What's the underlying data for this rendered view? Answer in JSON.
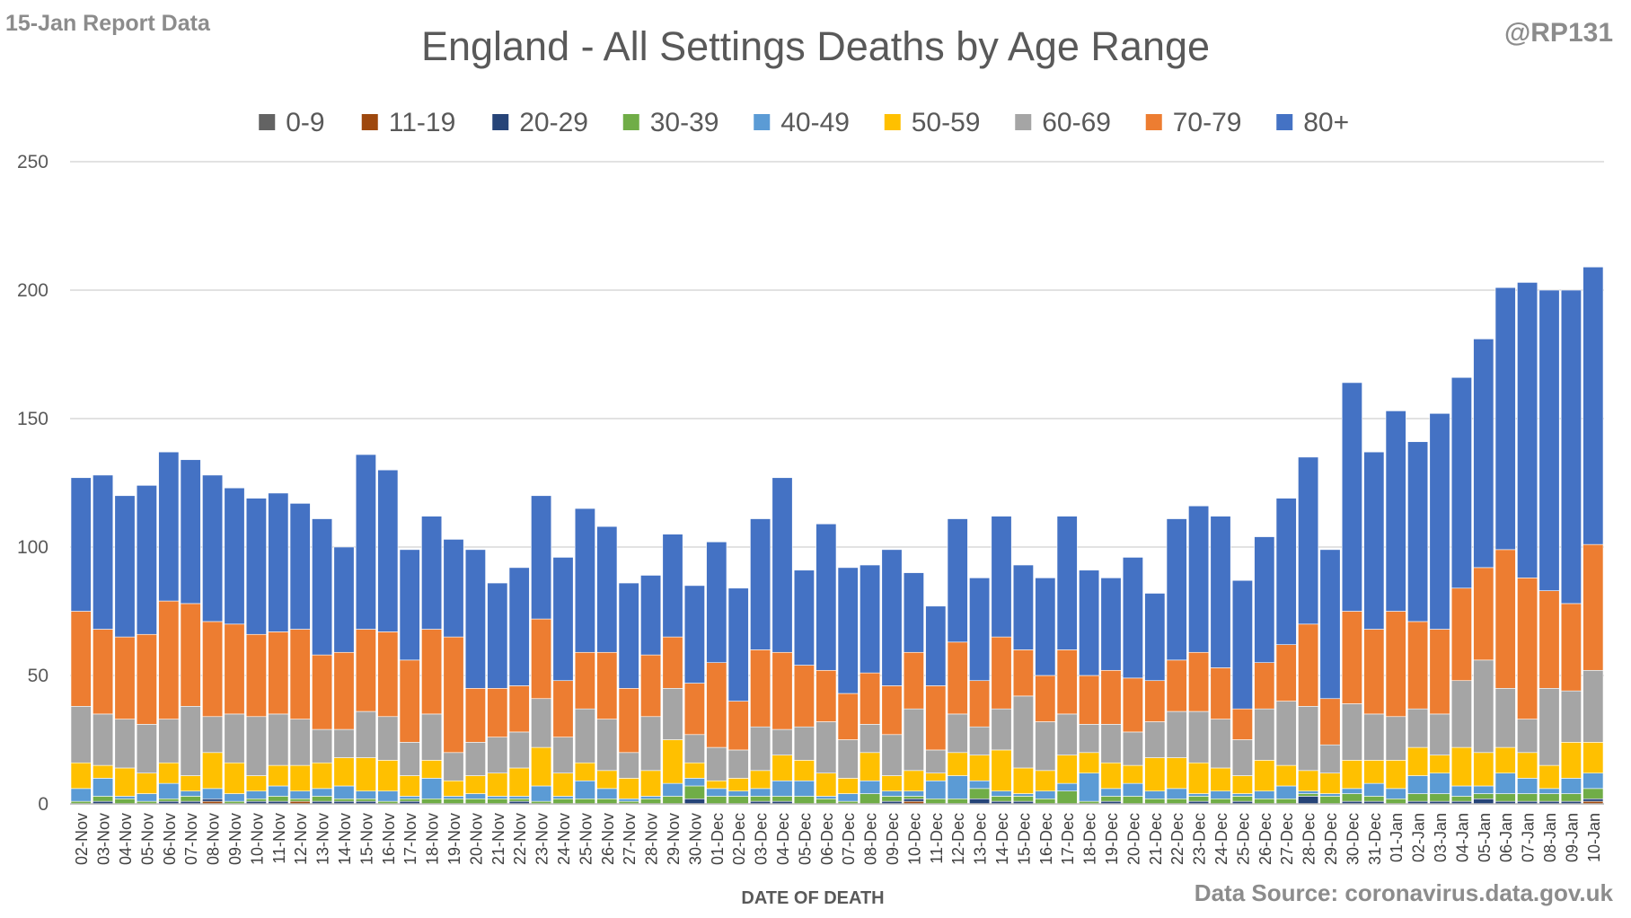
{
  "header": {
    "report_tag": "15-Jan Report Data",
    "handle": "@RP131",
    "source": "Data Source: coronavirus.data.gov.uk"
  },
  "chart_data": {
    "type": "bar",
    "stacked": true,
    "title": "England - All Settings Deaths by Age Range",
    "xlabel": "DATE OF DEATH",
    "ylabel": "",
    "ylim": [
      0,
      250
    ],
    "yticks": [
      0,
      50,
      100,
      150,
      200,
      250
    ],
    "grid": true,
    "legend_position": "top",
    "categories": [
      "02-Nov",
      "03-Nov",
      "04-Nov",
      "05-Nov",
      "06-Nov",
      "07-Nov",
      "08-Nov",
      "09-Nov",
      "10-Nov",
      "11-Nov",
      "12-Nov",
      "13-Nov",
      "14-Nov",
      "15-Nov",
      "16-Nov",
      "17-Nov",
      "18-Nov",
      "19-Nov",
      "20-Nov",
      "21-Nov",
      "22-Nov",
      "23-Nov",
      "24-Nov",
      "25-Nov",
      "26-Nov",
      "27-Nov",
      "28-Nov",
      "29-Nov",
      "30-Nov",
      "01-Dec",
      "02-Dec",
      "03-Dec",
      "04-Dec",
      "05-Dec",
      "06-Dec",
      "07-Dec",
      "08-Dec",
      "09-Dec",
      "10-Dec",
      "11-Dec",
      "12-Dec",
      "13-Dec",
      "14-Dec",
      "15-Dec",
      "16-Dec",
      "17-Dec",
      "18-Dec",
      "19-Dec",
      "20-Dec",
      "21-Dec",
      "22-Dec",
      "23-Dec",
      "24-Dec",
      "25-Dec",
      "26-Dec",
      "27-Dec",
      "28-Dec",
      "29-Dec",
      "30-Dec",
      "31-Dec",
      "01-Jan",
      "02-Jan",
      "03-Jan",
      "04-Jan",
      "05-Jan",
      "06-Jan",
      "07-Jan",
      "08-Jan",
      "09-Jan",
      "10-Jan"
    ],
    "series": [
      {
        "name": "0-9",
        "color": "#636363",
        "values": [
          0,
          0,
          0,
          0,
          0,
          0,
          0,
          0,
          0,
          0,
          0,
          0,
          0,
          0,
          0,
          0,
          0,
          0,
          0,
          0,
          0,
          0,
          0,
          0,
          0,
          0,
          0,
          0,
          0,
          0,
          0,
          0,
          0,
          0,
          0,
          0,
          0,
          0,
          0,
          0,
          0,
          0,
          0,
          0,
          0,
          0,
          0,
          0,
          0,
          0,
          0,
          0,
          0,
          0,
          0,
          0,
          0,
          0,
          0,
          0,
          0,
          0,
          0,
          0,
          0,
          0,
          0,
          0,
          0,
          0
        ]
      },
      {
        "name": "11-19",
        "color": "#9e480e",
        "values": [
          0,
          0,
          0,
          0,
          0,
          0,
          1,
          0,
          0,
          0,
          1,
          0,
          0,
          0,
          0,
          0,
          0,
          0,
          0,
          0,
          0,
          0,
          0,
          0,
          0,
          0,
          0,
          0,
          0,
          0,
          0,
          0,
          0,
          0,
          0,
          0,
          0,
          0,
          1,
          0,
          0,
          0,
          0,
          0,
          0,
          0,
          0,
          0,
          0,
          0,
          0,
          0,
          0,
          0,
          0,
          0,
          0,
          0,
          0,
          0,
          0,
          0,
          0,
          0,
          0,
          0,
          0,
          0,
          0,
          1
        ]
      },
      {
        "name": "20-29",
        "color": "#264478",
        "values": [
          0,
          1,
          0,
          0,
          1,
          1,
          1,
          0,
          1,
          1,
          0,
          1,
          1,
          1,
          0,
          1,
          0,
          0,
          0,
          0,
          1,
          0,
          0,
          0,
          0,
          0,
          0,
          0,
          2,
          0,
          0,
          1,
          1,
          0,
          0,
          0,
          0,
          1,
          1,
          0,
          0,
          2,
          1,
          1,
          0,
          0,
          0,
          1,
          0,
          0,
          0,
          1,
          0,
          1,
          0,
          0,
          3,
          0,
          1,
          1,
          0,
          1,
          1,
          1,
          2,
          1,
          1,
          1,
          1,
          1
        ]
      },
      {
        "name": "30-39",
        "color": "#70ad47",
        "values": [
          1,
          2,
          2,
          1,
          1,
          2,
          0,
          1,
          1,
          2,
          1,
          2,
          1,
          1,
          1,
          1,
          2,
          2,
          2,
          2,
          1,
          1,
          2,
          2,
          2,
          1,
          2,
          3,
          5,
          3,
          3,
          2,
          2,
          3,
          2,
          1,
          4,
          2,
          1,
          2,
          2,
          4,
          2,
          2,
          2,
          5,
          1,
          2,
          3,
          2,
          2,
          2,
          2,
          2,
          2,
          2,
          1,
          3,
          3,
          2,
          2,
          3,
          3,
          2,
          2,
          3,
          3,
          3,
          3,
          4
        ]
      },
      {
        "name": "40-49",
        "color": "#5b9bd5",
        "values": [
          5,
          7,
          1,
          3,
          6,
          2,
          4,
          3,
          3,
          4,
          3,
          3,
          5,
          3,
          4,
          1,
          8,
          1,
          2,
          1,
          1,
          6,
          1,
          7,
          4,
          1,
          1,
          5,
          3,
          3,
          2,
          3,
          6,
          6,
          1,
          3,
          5,
          2,
          2,
          7,
          9,
          3,
          2,
          1,
          3,
          3,
          11,
          3,
          5,
          3,
          4,
          1,
          3,
          1,
          3,
          5,
          1,
          1,
          2,
          5,
          4,
          7,
          8,
          4,
          3,
          8,
          6,
          2,
          6,
          6
        ]
      },
      {
        "name": "50-59",
        "color": "#ffc000",
        "values": [
          10,
          5,
          11,
          8,
          8,
          6,
          14,
          12,
          6,
          8,
          10,
          10,
          11,
          13,
          12,
          8,
          7,
          6,
          7,
          9,
          11,
          15,
          9,
          7,
          7,
          8,
          10,
          17,
          6,
          3,
          5,
          7,
          10,
          8,
          9,
          6,
          11,
          6,
          8,
          3,
          9,
          10,
          16,
          10,
          8,
          11,
          8,
          10,
          7,
          13,
          12,
          12,
          9,
          7,
          12,
          8,
          8,
          8,
          11,
          9,
          11,
          11,
          7,
          15,
          13,
          10,
          10,
          9,
          14,
          12
        ]
      },
      {
        "name": "60-69",
        "color": "#a5a5a5",
        "values": [
          22,
          20,
          19,
          19,
          17,
          27,
          14,
          19,
          23,
          20,
          18,
          13,
          11,
          18,
          17,
          13,
          18,
          11,
          13,
          14,
          14,
          19,
          14,
          21,
          20,
          10,
          21,
          20,
          11,
          13,
          11,
          17,
          10,
          13,
          20,
          15,
          11,
          16,
          24,
          9,
          15,
          11,
          16,
          28,
          19,
          16,
          11,
          15,
          13,
          14,
          18,
          20,
          19,
          14,
          20,
          25,
          25,
          11,
          22,
          18,
          17,
          15,
          16,
          26,
          36,
          23,
          13,
          30,
          20,
          28
        ]
      },
      {
        "name": "70-79",
        "color": "#ed7d31",
        "values": [
          37,
          33,
          32,
          35,
          46,
          40,
          37,
          35,
          32,
          32,
          35,
          29,
          30,
          32,
          33,
          32,
          33,
          45,
          21,
          19,
          18,
          31,
          22,
          22,
          26,
          25,
          24,
          20,
          20,
          33,
          19,
          30,
          30,
          24,
          20,
          18,
          20,
          19,
          22,
          25,
          28,
          18,
          28,
          18,
          18,
          25,
          19,
          21,
          21,
          16,
          20,
          23,
          20,
          12,
          18,
          22,
          32,
          18,
          36,
          33,
          41,
          34,
          33,
          36,
          36,
          54,
          55,
          38,
          34,
          49
        ]
      },
      {
        "name": "80+",
        "color": "#4472c4",
        "values": [
          52,
          60,
          55,
          58,
          58,
          56,
          57,
          53,
          53,
          54,
          49,
          53,
          41,
          68,
          63,
          43,
          44,
          38,
          54,
          41,
          46,
          48,
          48,
          56,
          49,
          41,
          31,
          40,
          38,
          47,
          44,
          51,
          68,
          37,
          57,
          49,
          42,
          53,
          31,
          31,
          48,
          40,
          47,
          33,
          38,
          52,
          41,
          36,
          47,
          34,
          55,
          57,
          59,
          50,
          49,
          57,
          65,
          58,
          89,
          69,
          78,
          70,
          84,
          82,
          89,
          102,
          115,
          117,
          122,
          108
        ]
      }
    ]
  }
}
